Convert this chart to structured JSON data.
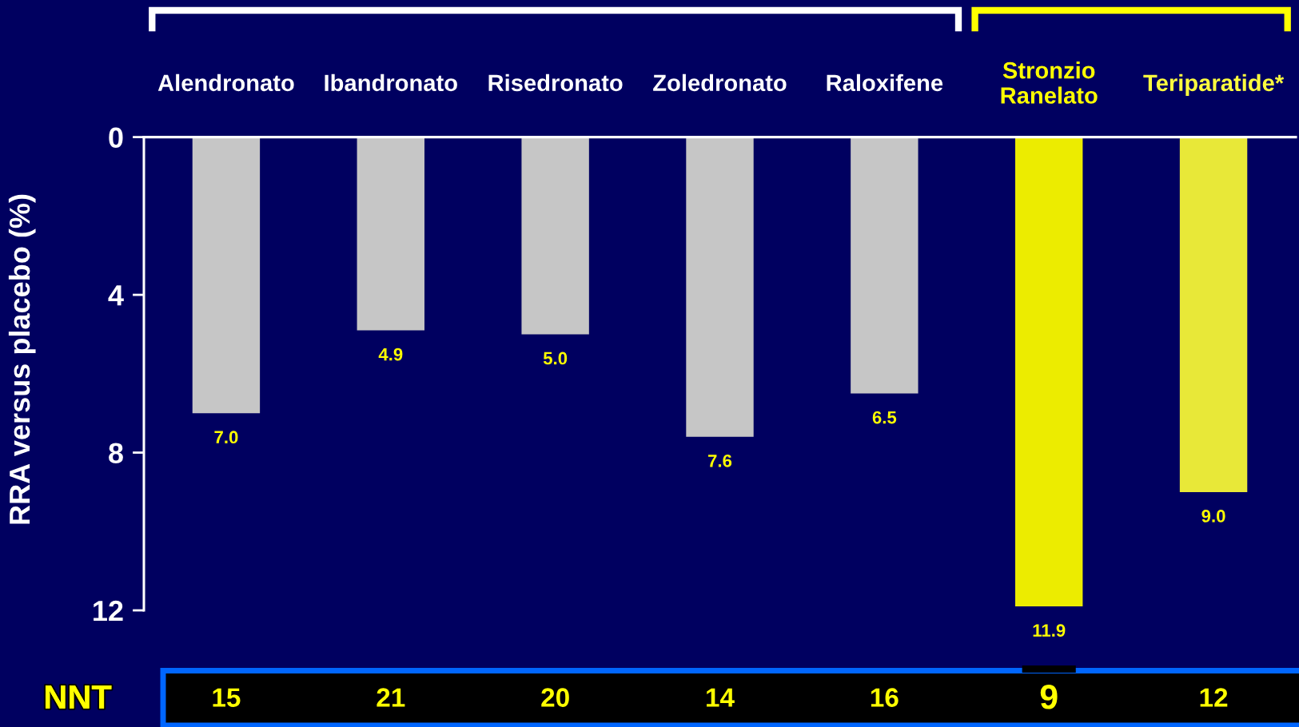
{
  "chart_data": {
    "type": "bar",
    "ylabel": "RRA versus placebo (%)",
    "categories": [
      "Alendronato",
      "Ibandronato",
      "Risedronato",
      "Zoledronato",
      "Raloxifene",
      "Stronzio\nRanelato",
      "Teriparatide*"
    ],
    "values": [
      7.0,
      4.9,
      5.0,
      7.6,
      6.5,
      11.9,
      9.0
    ],
    "colors": [
      "#c6c6c6",
      "#c6c6c6",
      "#c6c6c6",
      "#c6c6c6",
      "#c6c6c6",
      "#ecec00",
      "#e8e838"
    ],
    "value_labels": [
      "7.0",
      "4.9",
      "5.0",
      "7.6",
      "6.5",
      "11.9",
      "9.0"
    ],
    "ylim": [
      12,
      0
    ],
    "yticks": [
      0,
      4,
      8,
      12
    ],
    "grid": false,
    "annotations": [
      "NNT",
      "15",
      "21",
      "20",
      "14",
      "16",
      "9",
      "12"
    ]
  }
}
